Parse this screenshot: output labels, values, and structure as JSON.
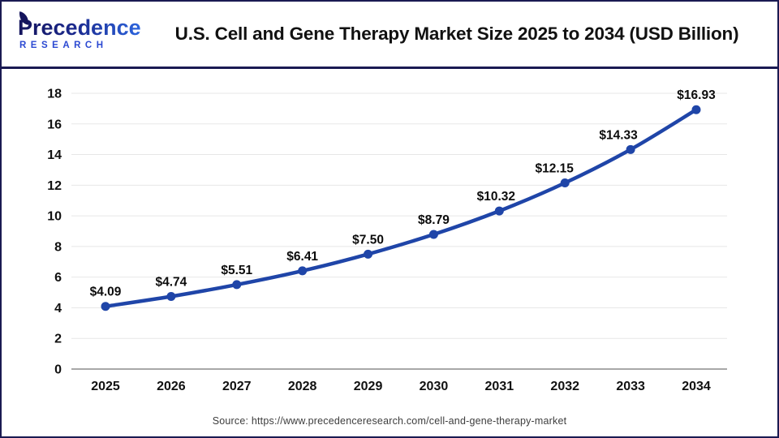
{
  "header": {
    "logo": {
      "line1": "Precedence",
      "line2": "RESEARCH"
    },
    "title": "U.S. Cell and Gene Therapy Market Size 2025 to 2034 (USD Billion)"
  },
  "chart_data": {
    "type": "line",
    "title": "U.S. Cell and Gene Therapy Market Size 2025 to 2034 (USD Billion)",
    "categories": [
      "2025",
      "2026",
      "2027",
      "2028",
      "2029",
      "2030",
      "2031",
      "2032",
      "2033",
      "2034"
    ],
    "values": [
      4.09,
      4.74,
      5.51,
      6.41,
      7.5,
      8.79,
      10.32,
      12.15,
      14.33,
      16.93
    ],
    "point_labels": [
      "$4.09",
      "$4.74",
      "$5.51",
      "$6.41",
      "$7.50",
      "$8.79",
      "$10.32",
      "$12.15",
      "$14.33",
      "$16.93"
    ],
    "xlabel": "",
    "ylabel": "",
    "ylim": [
      0,
      18
    ],
    "ytick_step": 2,
    "grid": true,
    "legend_position": "none",
    "label_dx": [
      0,
      0,
      0,
      0,
      0,
      0,
      -4,
      -13,
      -15,
      0
    ],
    "colors": {
      "line": "#1f45a8",
      "marker": "#1f45a8",
      "gridline": "#e7e7e7",
      "zero_axis": "#a8a8a8",
      "tick_text": "#111111",
      "data_label_text": "#0c0c0c"
    }
  },
  "footer": {
    "source": "Source: https://www.precedenceresearch.com/cell-and-gene-therapy-market"
  }
}
